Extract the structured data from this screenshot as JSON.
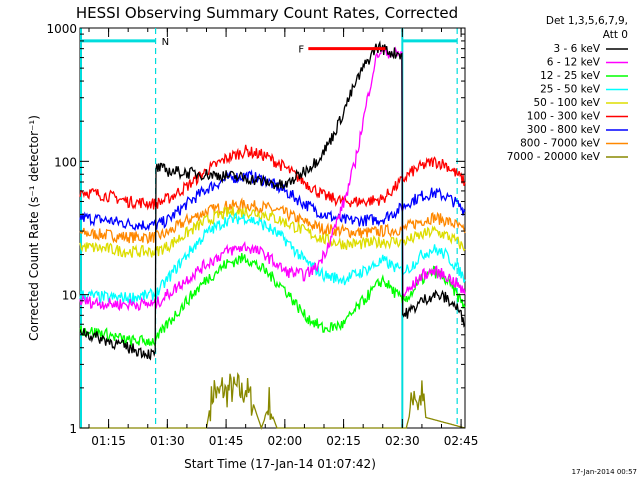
{
  "chart_data": {
    "type": "line",
    "title": "HESSI Observing Summary Count Rates, Corrected",
    "xlabel": "Start Time (17-Jan-14 01:07:42)",
    "ylabel": "Corrected Count Rate (s⁻¹ detector⁻¹)",
    "yscale": "log",
    "ylim": [
      1,
      1000
    ],
    "xlim_minutes": [
      67.7,
      166
    ],
    "y_tick_labels": [
      "1",
      "10",
      "100",
      "1000"
    ],
    "x_tick_labels": [
      "01:15",
      "01:30",
      "01:45",
      "02:00",
      "02:15",
      "02:30",
      "02:45"
    ],
    "x_tick_minutes": [
      75,
      90,
      105,
      120,
      135,
      150,
      165
    ],
    "legend_header": [
      "Det 1,3,5,6,7,9,",
      "Att 0"
    ],
    "legend_placement": "right-outside",
    "footer": "17-Jan-2014 00:57",
    "markers": [
      {
        "label": "N",
        "color": "#00dddd",
        "segments": [
          [
            67.7,
            87
          ],
          [
            150,
            164
          ]
        ],
        "level": 800
      },
      {
        "label": "F",
        "color": "#ff0000",
        "segments": [
          [
            126,
            145.7
          ]
        ],
        "level": 700
      }
    ],
    "night_boundaries_minutes": [
      87,
      150,
      164
    ],
    "series": [
      {
        "name": "3 - 6 keV",
        "color": "#000000",
        "x": [
          67.7,
          70,
          75,
          80,
          86.9,
          87.1,
          90,
          95,
          100,
          105,
          110,
          115,
          120,
          125,
          128,
          130,
          132,
          134,
          136,
          138,
          140,
          142,
          143,
          144,
          145,
          146,
          147,
          148,
          149.9,
          150.1,
          152,
          155,
          158,
          161,
          164,
          166
        ],
        "y": [
          5.5,
          5,
          4.5,
          4,
          3.5,
          90,
          85,
          82,
          80,
          78,
          75,
          70,
          65,
          85,
          100,
          120,
          150,
          200,
          280,
          380,
          500,
          620,
          700,
          720,
          700,
          680,
          660,
          650,
          640,
          7,
          7.5,
          9,
          10,
          9.5,
          8,
          6
        ]
      },
      {
        "name": "6 - 12 keV",
        "color": "#ff00ff",
        "x": [
          67.7,
          75,
          80,
          86.9,
          87.1,
          90,
          95,
          100,
          105,
          110,
          115,
          120,
          125,
          128,
          130,
          132,
          134,
          136,
          138,
          140,
          142,
          143,
          144,
          145,
          146,
          147,
          148,
          149.9,
          150.1,
          152,
          155,
          158,
          161,
          164,
          166
        ],
        "y": [
          9,
          8.5,
          8.5,
          8.5,
          8.5,
          10,
          13,
          17,
          21,
          23,
          20,
          15,
          14,
          16,
          20,
          28,
          40,
          60,
          100,
          200,
          400,
          550,
          650,
          680,
          660,
          650,
          640,
          640,
          10,
          11,
          14,
          15,
          14,
          12,
          10
        ]
      },
      {
        "name": "12 - 25 keV",
        "color": "#00ff00",
        "x": [
          67.7,
          75,
          80,
          87,
          90,
          95,
          100,
          105,
          110,
          115,
          120,
          125,
          130,
          135,
          140,
          145,
          150,
          152,
          155,
          158,
          161,
          164,
          166
        ],
        "y": [
          5.5,
          5,
          4.5,
          4.5,
          6,
          9,
          13,
          17,
          19,
          15,
          11,
          7,
          5.5,
          6,
          9,
          13,
          9,
          10,
          13,
          15,
          13,
          10,
          8
        ]
      },
      {
        "name": "25 - 50 keV",
        "color": "#00ffff",
        "x": [
          67.7,
          75,
          80,
          87,
          90,
          95,
          100,
          105,
          110,
          115,
          120,
          125,
          130,
          135,
          140,
          145,
          150,
          152,
          155,
          158,
          161,
          164,
          166
        ],
        "y": [
          10,
          9.5,
          9.5,
          10,
          13,
          20,
          29,
          36,
          38,
          33,
          26,
          18,
          14,
          13,
          15,
          18,
          15,
          16,
          20,
          22,
          20,
          16,
          13
        ]
      },
      {
        "name": "50 - 100 keV",
        "color": "#dddd00",
        "x": [
          67.7,
          75,
          80,
          87,
          90,
          95,
          100,
          105,
          110,
          115,
          120,
          125,
          130,
          135,
          140,
          145,
          150,
          152,
          155,
          158,
          161,
          164,
          166
        ],
        "y": [
          23,
          22,
          21,
          21,
          23,
          29,
          36,
          41,
          42,
          40,
          35,
          30,
          26,
          24,
          24,
          25,
          25,
          26,
          28,
          30,
          28,
          25,
          22
        ]
      },
      {
        "name": "100 - 300 keV",
        "color": "#ff0000",
        "x": [
          67.7,
          75,
          80,
          87,
          90,
          95,
          100,
          105,
          110,
          115,
          120,
          125,
          130,
          135,
          140,
          145,
          150,
          152,
          155,
          158,
          161,
          164,
          166
        ],
        "y": [
          60,
          55,
          50,
          48,
          52,
          65,
          85,
          105,
          120,
          110,
          90,
          70,
          55,
          50,
          50,
          52,
          72,
          82,
          92,
          100,
          95,
          80,
          70
        ]
      },
      {
        "name": "300 - 800 keV",
        "color": "#0000ff",
        "x": [
          67.7,
          75,
          80,
          87,
          90,
          95,
          100,
          105,
          110,
          115,
          120,
          125,
          130,
          135,
          140,
          145,
          150,
          152,
          155,
          158,
          161,
          164,
          166
        ],
        "y": [
          38,
          36,
          34,
          33,
          36,
          48,
          62,
          74,
          78,
          72,
          60,
          48,
          40,
          36,
          36,
          37,
          45,
          50,
          55,
          58,
          55,
          48,
          42
        ]
      },
      {
        "name": "800 - 7000 keV",
        "color": "#ff8800",
        "x": [
          67.7,
          75,
          80,
          87,
          90,
          95,
          100,
          105,
          110,
          115,
          120,
          125,
          130,
          135,
          140,
          145,
          150,
          152,
          155,
          158,
          161,
          164,
          166
        ],
        "y": [
          29,
          28,
          27,
          27,
          29,
          36,
          42,
          46,
          47,
          45,
          41,
          35,
          31,
          30,
          29,
          30,
          31,
          33,
          36,
          38,
          36,
          33,
          29
        ]
      },
      {
        "name": "7000 - 20000 keV",
        "color": "#888800",
        "x": [
          67.7,
          100,
          101,
          102,
          103,
          104,
          105,
          106,
          107,
          108,
          109,
          110,
          111,
          112,
          114,
          115,
          116,
          117,
          118,
          119,
          151,
          152,
          153,
          154,
          155,
          156,
          166
        ],
        "y": [
          1,
          1,
          1.5,
          2,
          1.7,
          2,
          1.8,
          2,
          1.9,
          2,
          1.8,
          2,
          1.7,
          1.5,
          1,
          1.2,
          1.6,
          1.2,
          1,
          1,
          1,
          1.3,
          2,
          1.5,
          1.8,
          1.2,
          1
        ]
      }
    ]
  }
}
